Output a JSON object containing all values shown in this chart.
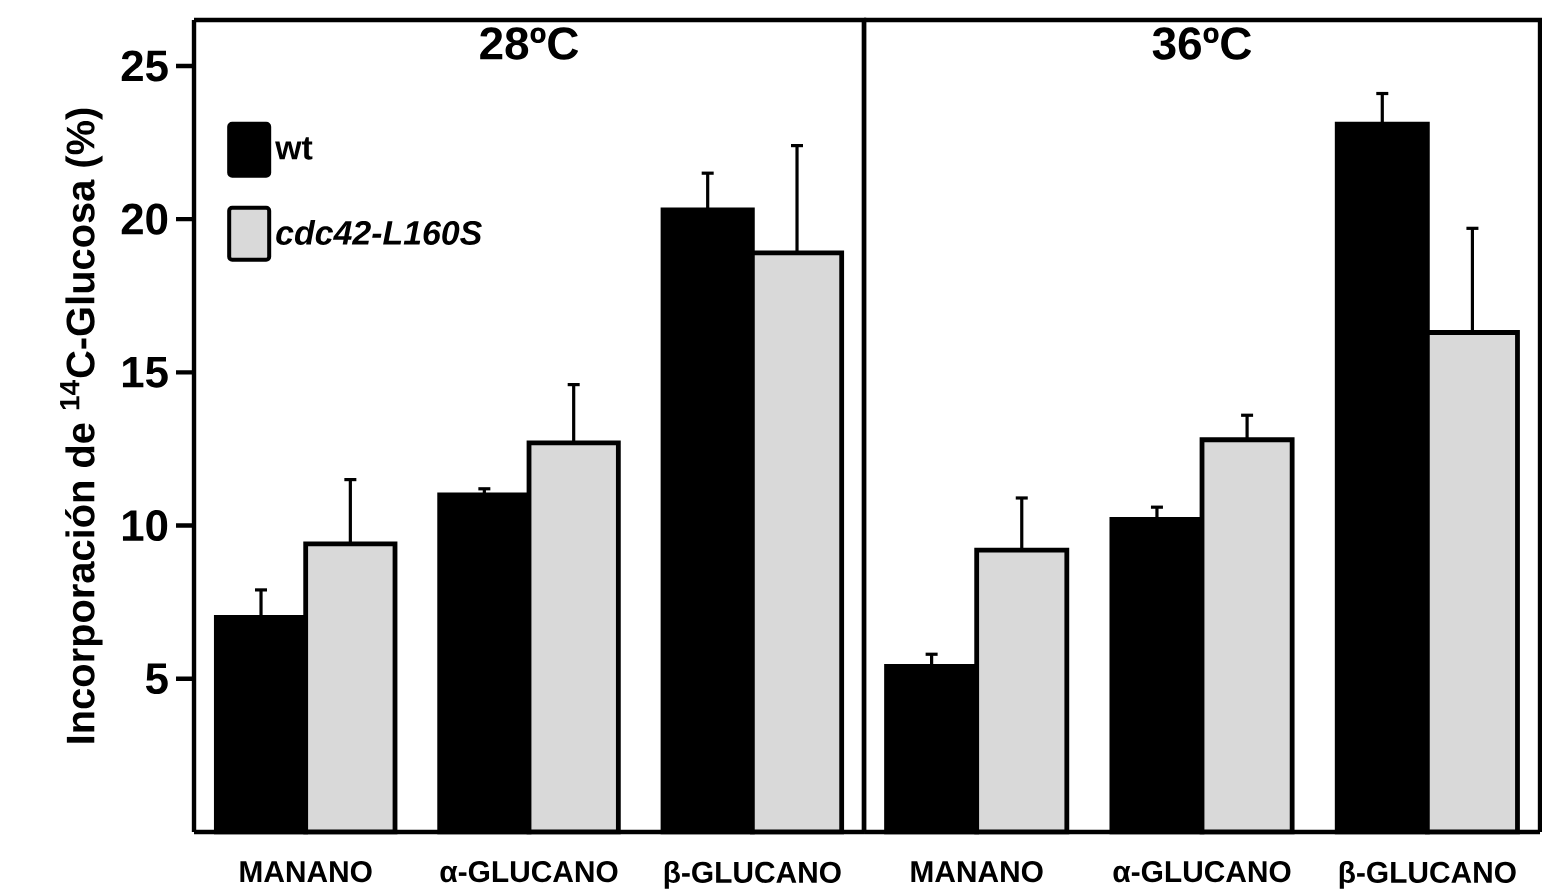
{
  "chart_data": [
    {
      "type": "bar",
      "title": "28ºC",
      "ylabel": "Incorporación de $^{14}$C-Glucosa (%)",
      "categories": [
        "MANANO",
        "α-GLUCANO",
        "β-GLUCANO"
      ],
      "ylim": [
        0,
        26.5
      ],
      "yticks": [
        5,
        10,
        15,
        20,
        25
      ],
      "legend": "top left",
      "series": [
        {
          "name": "wt",
          "color": "#000000",
          "values": [
            7.0,
            11.0,
            20.3
          ],
          "errors": [
            [
              7.0,
              7.9
            ],
            [
              11.0,
              11.2
            ],
            [
              20.3,
              21.5
            ]
          ]
        },
        {
          "name": "cdc42-L160S",
          "color": "#d9d9d9",
          "values": [
            9.4,
            12.7,
            18.9
          ],
          "errors": [
            [
              9.4,
              11.5
            ],
            [
              12.7,
              14.6
            ],
            [
              18.9,
              22.4
            ]
          ]
        }
      ]
    },
    {
      "type": "bar",
      "title": "36ºC",
      "categories": [
        "MANANO",
        "α-GLUCANO",
        "β-GLUCANO"
      ],
      "ylim": [
        0,
        26.5
      ],
      "tick_labels": "x",
      "series": [
        {
          "color": "#000000",
          "values": [
            5.4,
            10.2,
            23.1
          ],
          "errors": [
            [
              5.4,
              5.8
            ],
            [
              10.2,
              10.6
            ],
            [
              23.1,
              24.1
            ]
          ]
        },
        {
          "color": "#d9d9d9",
          "values": [
            9.2,
            12.8,
            16.3
          ],
          "errors": [
            [
              9.2,
              10.9
            ],
            [
              12.8,
              13.6
            ],
            [
              16.3,
              19.7
            ]
          ]
        }
      ]
    }
  ]
}
